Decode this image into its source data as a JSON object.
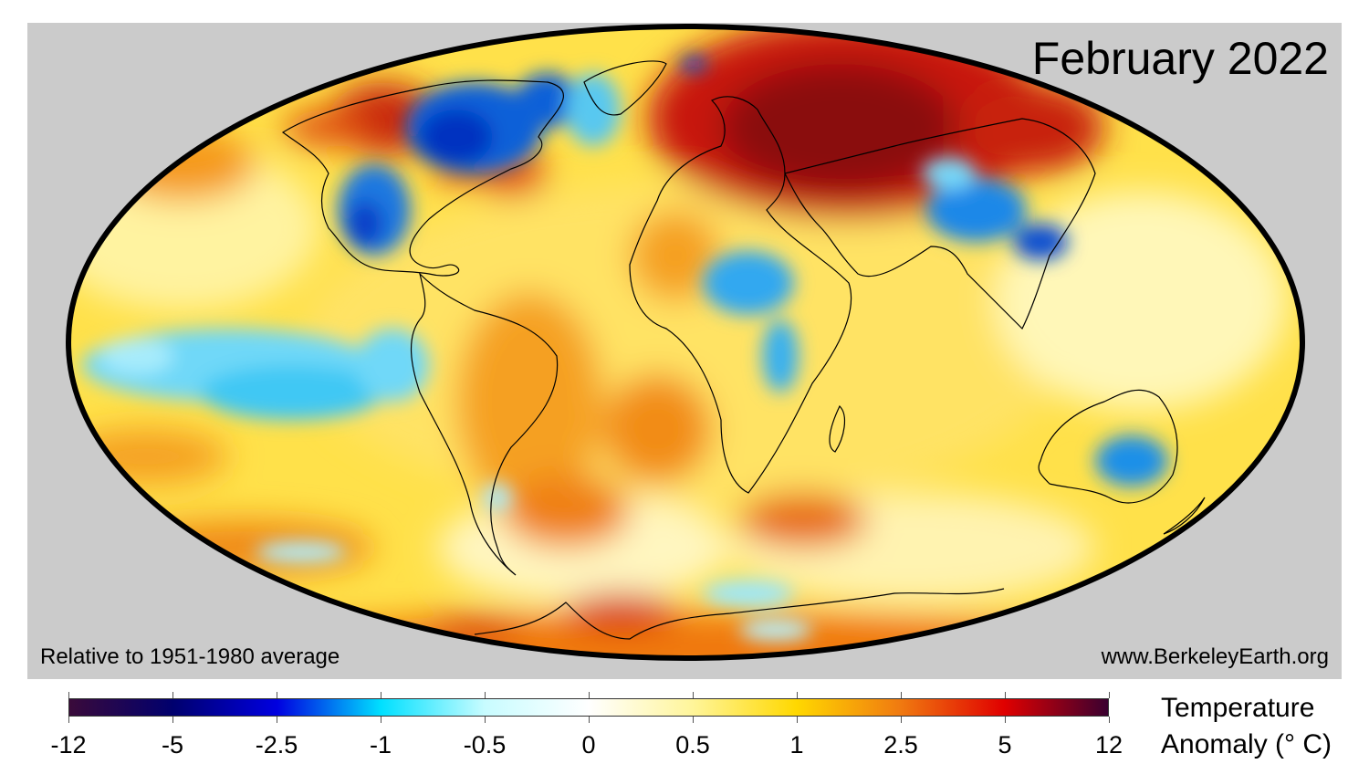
{
  "title": "February 2022",
  "baseline_note": "Relative to 1951-1980 average",
  "source": "www.BerkeleyEarth.org",
  "colorbar": {
    "title_line1": "Temperature",
    "title_line2": "Anomaly (° C)",
    "ticks": [
      "-12",
      "-5",
      "-2.5",
      "-1",
      "-0.5",
      "0",
      "0.5",
      "1",
      "2.5",
      "5",
      "12"
    ],
    "stops": [
      {
        "value": "-12",
        "color": "#3a0a3a"
      },
      {
        "value": "-5",
        "color": "#00006e"
      },
      {
        "value": "-2.5",
        "color": "#0000e0"
      },
      {
        "value": "-1",
        "color": "#00e0ff"
      },
      {
        "value": "-0.5",
        "color": "#c8fcff"
      },
      {
        "value": "0",
        "color": "#ffffff"
      },
      {
        "value": "0.5",
        "color": "#fff59a"
      },
      {
        "value": "1",
        "color": "#ffd800"
      },
      {
        "value": "2.5",
        "color": "#f07a10"
      },
      {
        "value": "5",
        "color": "#e00000"
      },
      {
        "value": "12",
        "color": "#3a0030"
      }
    ]
  },
  "colors": {
    "panel_background": "#cbcbcb",
    "page_background": "#ffffff",
    "map_border": "#000000"
  },
  "chart_data": {
    "type": "heatmap",
    "title": "February 2022",
    "subtitle": "Relative to 1951-1980 average",
    "projection": "Hammer/Mollweide-style equal-area world map",
    "colorbar_label": "Temperature Anomaly (° C)",
    "colorbar_ticks": [
      -12,
      -5,
      -2.5,
      -1,
      -0.5,
      0,
      0.5,
      1,
      2.5,
      5,
      12
    ],
    "vrange": [
      -12,
      12
    ],
    "annotations": [
      "Relative to 1951-1980 average",
      "www.BerkeleyEarth.org"
    ],
    "notable_regions": [
      {
        "region": "European Russia / Western Siberia",
        "anomaly": "strong warm (+5 to +12)"
      },
      {
        "region": "Northern Canada / Hudson Bay",
        "anomaly": "cold (-1 to -5)"
      },
      {
        "region": "Central United States",
        "anomaly": "cold (-1 to -2.5)"
      },
      {
        "region": "Alaska / NW Canada",
        "anomaly": "warm (+2.5 to +5)"
      },
      {
        "region": "East Asia (China)",
        "anomaly": "cold (-1 to -2.5)"
      },
      {
        "region": "Central Africa",
        "anomaly": "cold (-0.5 to -1)"
      },
      {
        "region": "Eastern tropical Pacific (La Niña)",
        "anomaly": "cool (-0.5 to -1)"
      },
      {
        "region": "Interior Australia",
        "anomaly": "cold (-0.5 to -2.5)"
      },
      {
        "region": "Antarctic Peninsula / Weddell Sea",
        "anomaly": "warm (+2.5 to +5)"
      },
      {
        "region": "Far East Russia",
        "anomaly": "strong warm (+5 to +12)"
      },
      {
        "region": "Most oceans",
        "anomaly": "mild warm (0 to +1)"
      }
    ]
  }
}
